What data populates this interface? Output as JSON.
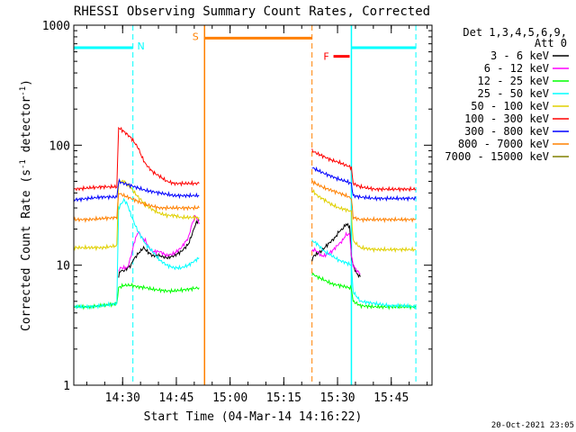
{
  "chart_data": {
    "type": "line",
    "title": "RHESSI Observing Summary Count Rates, Corrected",
    "xlabel": "Start Time (04-Mar-14 14:16:22)",
    "ylabel_main": "Corrected Count Rate (s",
    "ylabel_sup1": "-1",
    "ylabel_mid": " detector",
    "ylabel_sup2": "-1",
    "ylabel_end": ")",
    "y_scale": "log",
    "ylim": [
      1,
      1000
    ],
    "xlim_minutes": [
      0,
      100
    ],
    "x_ticks": [
      {
        "minute": 13.63,
        "label": "14:30"
      },
      {
        "minute": 28.63,
        "label": "14:45"
      },
      {
        "minute": 43.63,
        "label": "15:00"
      },
      {
        "minute": 58.63,
        "label": "15:15"
      },
      {
        "minute": 73.63,
        "label": "15:30"
      },
      {
        "minute": 88.63,
        "label": "15:45"
      }
    ],
    "y_ticks": [
      {
        "value": 1,
        "label": "1"
      },
      {
        "value": 10,
        "label": "10"
      },
      {
        "value": 100,
        "label": "100"
      },
      {
        "value": 1000,
        "label": "1000"
      }
    ],
    "legend_header": [
      "Det 1,3,4,5,6,9,",
      "Att 0"
    ],
    "legend_position": "right",
    "timestamp": "20-Oct-2021 23:05",
    "markers": [
      {
        "label": "N",
        "color": "#00ffff",
        "bar_start": 0,
        "bar_end": 16.5,
        "value": 650,
        "lines_dashed": [
          16.5,
          95.5
        ],
        "lines_solid": [
          77.5
        ],
        "bar2_start": 77.5,
        "bar2_end": 95.5
      },
      {
        "label": "S",
        "color": "#ff8000",
        "bar_start": 36.5,
        "bar_end": 66.5,
        "value": 780,
        "lines_solid": [
          36.5
        ],
        "lines_dashed": [
          66.5
        ]
      },
      {
        "label": "F",
        "color": "#ff0000",
        "bar_start": 72.5,
        "bar_end": 77,
        "value": 550
      }
    ],
    "gaps": [
      [
        35,
        66.5
      ]
    ],
    "series": [
      {
        "name": "3 - 6 keV",
        "color": "#000000",
        "segments": [
          [
            [
              12.5,
              8
            ],
            [
              13,
              9
            ],
            [
              14,
              9
            ],
            [
              15,
              9.5
            ],
            [
              16,
              10
            ],
            [
              16.5,
              11
            ],
            [
              18,
              12.5
            ],
            [
              19.5,
              14
            ],
            [
              20.5,
              13
            ],
            [
              22,
              12
            ],
            [
              24,
              12
            ],
            [
              26,
              11.5
            ],
            [
              28,
              12
            ],
            [
              30,
              13
            ],
            [
              32,
              15
            ],
            [
              33,
              18
            ],
            [
              34,
              22
            ],
            [
              35,
              24
            ]
          ],
          [
            [
              66.5,
              11
            ],
            [
              67,
              12
            ],
            [
              68,
              12.5
            ],
            [
              69,
              13
            ],
            [
              70,
              14
            ],
            [
              71,
              15
            ],
            [
              72,
              16
            ],
            [
              73,
              17
            ],
            [
              74,
              19
            ],
            [
              75,
              20
            ],
            [
              76,
              22
            ],
            [
              77,
              21
            ],
            [
              77.5,
              12
            ],
            [
              78,
              10
            ],
            [
              79,
              8.5
            ],
            [
              80,
              8
            ]
          ]
        ]
      },
      {
        "name": "6 - 12 keV",
        "color": "#ff00ff",
        "segments": [
          [
            [
              12.5,
              9
            ],
            [
              13,
              9.5
            ],
            [
              14,
              9.5
            ],
            [
              15,
              9.5
            ],
            [
              16,
              12
            ],
            [
              17,
              16
            ],
            [
              18,
              19
            ],
            [
              19,
              17
            ],
            [
              20,
              16
            ],
            [
              21,
              14
            ],
            [
              22,
              13
            ],
            [
              24,
              13
            ],
            [
              26,
              12
            ],
            [
              28,
              12.5
            ],
            [
              30,
              14
            ],
            [
              32,
              17
            ],
            [
              33,
              22
            ],
            [
              34,
              26
            ],
            [
              35,
              22
            ]
          ],
          [
            [
              66.5,
              13
            ],
            [
              67,
              13.5
            ],
            [
              68,
              13
            ],
            [
              69,
              12
            ],
            [
              70,
              12
            ],
            [
              71,
              12.5
            ],
            [
              72,
              13
            ],
            [
              73,
              14
            ],
            [
              74,
              15
            ],
            [
              75,
              16
            ],
            [
              76,
              18
            ],
            [
              77,
              18
            ],
            [
              77.5,
              12
            ],
            [
              78,
              10
            ],
            [
              79,
              9
            ],
            [
              80,
              8.5
            ]
          ]
        ]
      },
      {
        "name": "12 - 25 keV",
        "color": "#00ff00",
        "segments": [
          [
            [
              0,
              4.5
            ],
            [
              4,
              4.5
            ],
            [
              8,
              4.6
            ],
            [
              12,
              4.8
            ],
            [
              12.5,
              6.5
            ],
            [
              14,
              6.8
            ],
            [
              16,
              6.8
            ],
            [
              18,
              6.6
            ],
            [
              20,
              6.5
            ],
            [
              22,
              6.3
            ],
            [
              24,
              6.2
            ],
            [
              26,
              6.1
            ],
            [
              28,
              6.1
            ],
            [
              30,
              6.2
            ],
            [
              32,
              6.3
            ],
            [
              35,
              6.5
            ]
          ],
          [
            [
              66.5,
              8.5
            ],
            [
              68,
              8
            ],
            [
              70,
              7.5
            ],
            [
              72,
              7
            ],
            [
              74,
              6.8
            ],
            [
              76,
              6.6
            ],
            [
              77.5,
              6.4
            ],
            [
              78,
              5
            ],
            [
              80,
              4.6
            ],
            [
              84,
              4.5
            ],
            [
              88,
              4.5
            ],
            [
              92,
              4.5
            ],
            [
              95.5,
              4.5
            ]
          ]
        ]
      },
      {
        "name": "25 - 50 keV",
        "color": "#00ffff",
        "segments": [
          [
            [
              0,
              4.5
            ],
            [
              4,
              4.5
            ],
            [
              8,
              4.6
            ],
            [
              12,
              4.8
            ],
            [
              12.5,
              30
            ],
            [
              14,
              35
            ],
            [
              15,
              32
            ],
            [
              16,
              26
            ],
            [
              17,
              22
            ],
            [
              18,
              19
            ],
            [
              19,
              17
            ],
            [
              20,
              15
            ],
            [
              22,
              13
            ],
            [
              24,
              11
            ],
            [
              26,
              10
            ],
            [
              28,
              9.5
            ],
            [
              30,
              9.5
            ],
            [
              32,
              10
            ],
            [
              34,
              11
            ],
            [
              35,
              11.5
            ]
          ],
          [
            [
              66.5,
              16
            ],
            [
              68,
              15
            ],
            [
              70,
              13
            ],
            [
              72,
              12
            ],
            [
              74,
              11
            ],
            [
              76,
              10.5
            ],
            [
              77.5,
              10
            ],
            [
              78,
              6
            ],
            [
              80,
              5
            ],
            [
              84,
              4.8
            ],
            [
              88,
              4.6
            ],
            [
              92,
              4.6
            ],
            [
              95.5,
              4.5
            ]
          ]
        ]
      },
      {
        "name": "50 - 100 keV",
        "color": "#e0d000",
        "segments": [
          [
            [
              0,
              14
            ],
            [
              4,
              14
            ],
            [
              8,
              14
            ],
            [
              12,
              14.5
            ],
            [
              12.5,
              50
            ],
            [
              14,
              50
            ],
            [
              16,
              44
            ],
            [
              17,
              40
            ],
            [
              18,
              37
            ],
            [
              20,
              32
            ],
            [
              22,
              29
            ],
            [
              24,
              27
            ],
            [
              26,
              26
            ],
            [
              28,
              26
            ],
            [
              30,
              25
            ],
            [
              32,
              25
            ],
            [
              34,
              25
            ],
            [
              35,
              25
            ]
          ],
          [
            [
              66.5,
              42
            ],
            [
              68,
              38
            ],
            [
              70,
              35
            ],
            [
              72,
              32
            ],
            [
              74,
              30
            ],
            [
              76,
              29
            ],
            [
              77.5,
              28
            ],
            [
              78,
              16
            ],
            [
              80,
              14
            ],
            [
              84,
              13.5
            ],
            [
              88,
              13.5
            ],
            [
              92,
              13.5
            ],
            [
              95.5,
              13.5
            ]
          ]
        ]
      },
      {
        "name": "100 - 300 keV",
        "color": "#ff0000",
        "segments": [
          [
            [
              0,
              43
            ],
            [
              4,
              44
            ],
            [
              8,
              45
            ],
            [
              12,
              45
            ],
            [
              12.5,
              140
            ],
            [
              14,
              130
            ],
            [
              16,
              115
            ],
            [
              18,
              95
            ],
            [
              19,
              80
            ],
            [
              20,
              70
            ],
            [
              22,
              60
            ],
            [
              24,
              55
            ],
            [
              26,
              50
            ],
            [
              28,
              48
            ],
            [
              30,
              48
            ],
            [
              32,
              48
            ],
            [
              34,
              48
            ],
            [
              35,
              48
            ]
          ],
          [
            [
              66.5,
              90
            ],
            [
              68,
              85
            ],
            [
              70,
              80
            ],
            [
              72,
              75
            ],
            [
              74,
              72
            ],
            [
              76,
              68
            ],
            [
              77.5,
              65
            ],
            [
              78,
              48
            ],
            [
              80,
              45
            ],
            [
              84,
              43
            ],
            [
              88,
              43
            ],
            [
              92,
              43
            ],
            [
              95.5,
              43
            ]
          ]
        ]
      },
      {
        "name": "300 - 800 keV",
        "color": "#0000ff",
        "segments": [
          [
            [
              0,
              35
            ],
            [
              4,
              36
            ],
            [
              8,
              37
            ],
            [
              12,
              37
            ],
            [
              12.5,
              50
            ],
            [
              14,
              48
            ],
            [
              16,
              46
            ],
            [
              18,
              44
            ],
            [
              20,
              42
            ],
            [
              22,
              41
            ],
            [
              24,
              40
            ],
            [
              26,
              39
            ],
            [
              28,
              38
            ],
            [
              30,
              38
            ],
            [
              32,
              38
            ],
            [
              34,
              38
            ],
            [
              35,
              38
            ]
          ],
          [
            [
              66.5,
              65
            ],
            [
              68,
              62
            ],
            [
              70,
              58
            ],
            [
              72,
              55
            ],
            [
              74,
              52
            ],
            [
              76,
              50
            ],
            [
              77.5,
              48
            ],
            [
              78,
              38
            ],
            [
              80,
              37
            ],
            [
              84,
              36
            ],
            [
              88,
              36
            ],
            [
              92,
              36
            ],
            [
              95.5,
              36
            ]
          ]
        ]
      },
      {
        "name": "800 - 7000 keV",
        "color": "#ff8000",
        "segments": [
          [
            [
              0,
              24
            ],
            [
              4,
              24
            ],
            [
              8,
              24.5
            ],
            [
              12,
              25
            ],
            [
              12.5,
              40
            ],
            [
              14,
              38
            ],
            [
              16,
              36
            ],
            [
              18,
              34
            ],
            [
              20,
              32
            ],
            [
              22,
              31
            ],
            [
              24,
              30
            ],
            [
              26,
              30
            ],
            [
              28,
              30
            ],
            [
              30,
              30
            ],
            [
              32,
              30
            ],
            [
              34,
              30
            ],
            [
              35,
              30
            ]
          ],
          [
            [
              66.5,
              50
            ],
            [
              68,
              47
            ],
            [
              70,
              44
            ],
            [
              72,
              42
            ],
            [
              74,
              40
            ],
            [
              76,
              38
            ],
            [
              77.5,
              36
            ],
            [
              78,
              25
            ],
            [
              80,
              24
            ],
            [
              84,
              24
            ],
            [
              88,
              24
            ],
            [
              92,
              24
            ],
            [
              95.5,
              24
            ]
          ]
        ]
      },
      {
        "name": "7000 - 15000 keV",
        "color": "#808000",
        "segments": []
      }
    ]
  }
}
